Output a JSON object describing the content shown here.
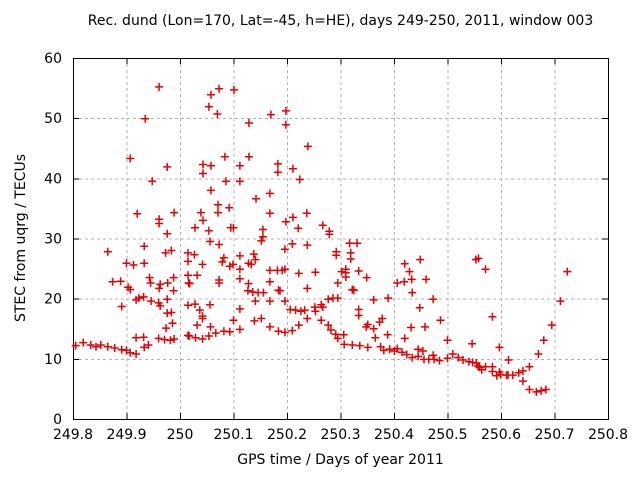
{
  "title": "Rec. dund (Lon=170, Lat=-45, h=HE), days 249-250, 2011, window 003",
  "colors": {
    "marker": "#e60000",
    "grid": "#b0b0b0",
    "border": "#000000",
    "background": "#ffffff",
    "text": "#000000"
  },
  "chart_data": {
    "type": "scatter",
    "title": "Rec. dund (Lon=170, Lat=-45, h=HE), days 249-250, 2011, window 003",
    "xlabel": "GPS time / Days of year 2011",
    "ylabel": "STEC from uqrg / TECUs",
    "xlim": [
      249.8,
      250.8
    ],
    "ylim": [
      0,
      60
    ],
    "xticks": [
      249.8,
      249.9,
      250,
      250.1,
      250.2,
      250.3,
      250.4,
      250.5,
      250.6,
      250.7,
      250.8
    ],
    "xtick_labels": [
      "249.8",
      "249.9",
      "250",
      "250.1",
      "250.2",
      "250.3",
      "250.4",
      "250.5",
      "250.6",
      "250.7",
      "250.8"
    ],
    "yticks": [
      0,
      10,
      20,
      30,
      40,
      50,
      60
    ],
    "ytick_labels": [
      "0",
      "10",
      "20",
      "30",
      "40",
      "50",
      "60"
    ],
    "grid": true,
    "legend": null,
    "marker": "plus",
    "points": [
      [
        249.961,
        55.2
      ],
      [
        249.935,
        49.9
      ],
      [
        249.907,
        43.3
      ],
      [
        249.976,
        41.9
      ],
      [
        250.043,
        42.3
      ],
      [
        250.043,
        40.8
      ],
      [
        249.948,
        39.5
      ],
      [
        249.92,
        34.1
      ],
      [
        249.961,
        33.2
      ],
      [
        249.961,
        32.5
      ],
      [
        249.989,
        34.3
      ],
      [
        250.028,
        31.8
      ],
      [
        250.039,
        34.3
      ],
      [
        250.043,
        33.0
      ],
      [
        249.976,
        30.8
      ],
      [
        250.073,
        54.9
      ],
      [
        250.101,
        54.7
      ],
      [
        250.058,
        53.9
      ],
      [
        250.054,
        51.9
      ],
      [
        250.07,
        50.7
      ],
      [
        250.17,
        50.6
      ],
      [
        250.198,
        51.2
      ],
      [
        250.129,
        49.2
      ],
      [
        250.198,
        48.9
      ],
      [
        250.239,
        45.3
      ],
      [
        250.084,
        43.6
      ],
      [
        250.129,
        43.6
      ],
      [
        250.112,
        42.1
      ],
      [
        250.058,
        42.1
      ],
      [
        250.183,
        42.4
      ],
      [
        250.183,
        41.0
      ],
      [
        250.211,
        41.6
      ],
      [
        250.086,
        39.5
      ],
      [
        250.112,
        39.5
      ],
      [
        250.224,
        39.8
      ],
      [
        250.058,
        38.0
      ],
      [
        250.142,
        36.6
      ],
      [
        250.168,
        37.5
      ],
      [
        250.071,
        35.6
      ],
      [
        250.092,
        35.1
      ],
      [
        250.071,
        34.3
      ],
      [
        250.168,
        34.2
      ],
      [
        250.198,
        32.8
      ],
      [
        250.211,
        33.5
      ],
      [
        250.237,
        34.2
      ],
      [
        250.221,
        31.7
      ],
      [
        250.095,
        31.8
      ],
      [
        250.1,
        31.8
      ],
      [
        250.155,
        31.5
      ],
      [
        250.267,
        32.2
      ],
      [
        250.279,
        31.2
      ],
      [
        250.279,
        30.7
      ],
      [
        250.155,
        30.3
      ],
      [
        250.054,
        31.3
      ],
      [
        249.865,
        27.8
      ],
      [
        249.933,
        28.7
      ],
      [
        249.973,
        27.6
      ],
      [
        249.984,
        28.0
      ],
      [
        250.015,
        27.6
      ],
      [
        250.027,
        27.3
      ],
      [
        249.9,
        25.9
      ],
      [
        249.913,
        25.6
      ],
      [
        249.933,
        25.9
      ],
      [
        250.042,
        25.7
      ],
      [
        250.015,
        26.2
      ],
      [
        249.874,
        22.8
      ],
      [
        249.889,
        22.9
      ],
      [
        249.943,
        23.5
      ],
      [
        249.945,
        22.6
      ],
      [
        249.963,
        22.4
      ],
      [
        249.977,
        22.6
      ],
      [
        249.988,
        23.5
      ],
      [
        250.015,
        23.9
      ],
      [
        250.032,
        23.9
      ],
      [
        250.016,
        22.6
      ],
      [
        250.018,
        22.5
      ],
      [
        249.988,
        21.3
      ],
      [
        249.961,
        21.7
      ],
      [
        249.903,
        21.9
      ],
      [
        249.907,
        21.5
      ],
      [
        249.918,
        19.8
      ],
      [
        249.923,
        20.1
      ],
      [
        249.932,
        20.3
      ],
      [
        249.946,
        19.6
      ],
      [
        249.96,
        19.3
      ],
      [
        249.891,
        18.7
      ],
      [
        249.963,
        18.8
      ],
      [
        249.976,
        19.9
      ],
      [
        250.028,
        19.1
      ],
      [
        250.015,
        18.9
      ],
      [
        249.976,
        17.6
      ],
      [
        249.984,
        17.7
      ],
      [
        250.037,
        18.1
      ],
      [
        250.042,
        17.1
      ],
      [
        250.042,
        16.7
      ],
      [
        250.032,
        15.6
      ],
      [
        249.974,
        15.1
      ],
      [
        249.986,
        15.9
      ],
      [
        249.918,
        13.5
      ],
      [
        249.932,
        13.6
      ],
      [
        249.96,
        13.4
      ],
      [
        249.971,
        13.2
      ],
      [
        249.982,
        13.1
      ],
      [
        249.989,
        13.3
      ],
      [
        250.015,
        13.9
      ],
      [
        250.017,
        13.8
      ],
      [
        250.029,
        13.5
      ],
      [
        250.042,
        13.3
      ],
      [
        249.805,
        12.2
      ],
      [
        249.819,
        12.7
      ],
      [
        249.833,
        12.3
      ],
      [
        249.843,
        12.0
      ],
      [
        249.852,
        12.3
      ],
      [
        249.865,
        12.0
      ],
      [
        249.878,
        11.8
      ],
      [
        249.891,
        11.5
      ],
      [
        249.9,
        11.4
      ],
      [
        249.907,
        11.0
      ],
      [
        249.918,
        10.8
      ],
      [
        249.933,
        11.9
      ],
      [
        249.941,
        12.3
      ],
      [
        250.056,
        29.5
      ],
      [
        250.073,
        29.0
      ],
      [
        250.152,
        29.6
      ],
      [
        250.196,
        28.2
      ],
      [
        250.21,
        29.1
      ],
      [
        250.238,
        28.9
      ],
      [
        250.292,
        27.8
      ],
      [
        250.292,
        27.2
      ],
      [
        250.082,
        26.8
      ],
      [
        250.079,
        26.1
      ],
      [
        250.112,
        27.1
      ],
      [
        250.138,
        27.4
      ],
      [
        250.141,
        26.5
      ],
      [
        250.128,
        25.9
      ],
      [
        250.133,
        25.7
      ],
      [
        250.099,
        25.7
      ],
      [
        250.093,
        25.4
      ],
      [
        250.112,
        24.9
      ],
      [
        250.168,
        24.7
      ],
      [
        250.182,
        24.7
      ],
      [
        250.191,
        24.7
      ],
      [
        250.196,
        24.9
      ],
      [
        250.222,
        24.2
      ],
      [
        250.253,
        24.4
      ],
      [
        250.302,
        24.5
      ],
      [
        250.073,
        23.1
      ],
      [
        250.073,
        22.6
      ],
      [
        250.112,
        23.3
      ],
      [
        250.128,
        22.5
      ],
      [
        250.168,
        22.8
      ],
      [
        250.238,
        21.7
      ],
      [
        250.295,
        22.6
      ],
      [
        250.127,
        21.3
      ],
      [
        250.136,
        21.1
      ],
      [
        250.146,
        21.0
      ],
      [
        250.156,
        21.0
      ],
      [
        250.184,
        21.4
      ],
      [
        250.187,
        21.3
      ],
      [
        250.168,
        19.6
      ],
      [
        250.141,
        19.6
      ],
      [
        250.196,
        19.6
      ],
      [
        250.056,
        19.0
      ],
      [
        250.112,
        18.3
      ],
      [
        250.206,
        18.2
      ],
      [
        250.216,
        18.1
      ],
      [
        250.226,
        17.9
      ],
      [
        250.233,
        18.1
      ],
      [
        250.252,
        18.6
      ],
      [
        250.253,
        17.9
      ],
      [
        250.264,
        19.0
      ],
      [
        250.267,
        18.6
      ],
      [
        250.277,
        19.9
      ],
      [
        250.286,
        20.1
      ],
      [
        250.295,
        20.1
      ],
      [
        250.238,
        16.7
      ],
      [
        250.264,
        16.4
      ],
      [
        250.222,
        15.6
      ],
      [
        250.1,
        16.4
      ],
      [
        250.139,
        16.3
      ],
      [
        250.152,
        16.7
      ],
      [
        250.168,
        15.3
      ],
      [
        250.277,
        15.6
      ],
      [
        250.282,
        14.8
      ],
      [
        250.057,
        15.3
      ],
      [
        250.054,
        13.8
      ],
      [
        250.067,
        14.3
      ],
      [
        250.082,
        14.6
      ],
      [
        250.093,
        14.5
      ],
      [
        250.112,
        14.9
      ],
      [
        250.184,
        14.6
      ],
      [
        250.196,
        14.4
      ],
      [
        250.21,
        14.7
      ],
      [
        250.291,
        14.1
      ],
      [
        250.295,
        13.4
      ],
      [
        250.317,
        29.2
      ],
      [
        250.331,
        29.2
      ],
      [
        250.319,
        27.6
      ],
      [
        250.319,
        26.6
      ],
      [
        250.31,
        24.9
      ],
      [
        250.31,
        24.3
      ],
      [
        250.31,
        23.6
      ],
      [
        250.334,
        24.6
      ],
      [
        250.349,
        23.5
      ],
      [
        250.322,
        21.5
      ],
      [
        250.325,
        21.4
      ],
      [
        250.42,
        25.8
      ],
      [
        250.449,
        26.5
      ],
      [
        250.429,
        24.5
      ],
      [
        250.433,
        23.2
      ],
      [
        250.406,
        22.6
      ],
      [
        250.419,
        22.8
      ],
      [
        250.434,
        21.0
      ],
      [
        250.46,
        23.2
      ],
      [
        250.553,
        26.5
      ],
      [
        250.362,
        19.8
      ],
      [
        250.389,
        20.1
      ],
      [
        250.473,
        19.9
      ],
      [
        250.448,
        18.5
      ],
      [
        250.334,
        18.2
      ],
      [
        250.334,
        17.2
      ],
      [
        250.378,
        16.7
      ],
      [
        250.351,
        15.7
      ],
      [
        250.348,
        15.3
      ],
      [
        250.362,
        15.0
      ],
      [
        250.373,
        16.1
      ],
      [
        250.432,
        15.2
      ],
      [
        250.458,
        15.3
      ],
      [
        250.487,
        16.4
      ],
      [
        250.306,
        14.0
      ],
      [
        250.365,
        13.5
      ],
      [
        250.388,
        14.0
      ],
      [
        250.42,
        13.4
      ],
      [
        250.5,
        13.1
      ],
      [
        250.546,
        12.5
      ],
      [
        250.307,
        12.4
      ],
      [
        250.322,
        12.3
      ],
      [
        250.336,
        12.2
      ],
      [
        250.351,
        11.9
      ],
      [
        250.375,
        12.0
      ],
      [
        250.381,
        11.4
      ],
      [
        250.392,
        11.6
      ],
      [
        250.401,
        11.3
      ],
      [
        250.406,
        11.7
      ],
      [
        250.415,
        11.1
      ],
      [
        250.424,
        10.7
      ],
      [
        250.434,
        10.2
      ],
      [
        250.445,
        11.6
      ],
      [
        250.454,
        11.3
      ],
      [
        250.445,
        10.4
      ],
      [
        250.456,
        9.9
      ],
      [
        250.465,
        9.9
      ],
      [
        250.473,
        10.6
      ],
      [
        250.475,
        9.9
      ],
      [
        250.485,
        9.7
      ],
      [
        250.5,
        10.1
      ],
      [
        250.51,
        10.8
      ],
      [
        250.52,
        10.2
      ],
      [
        250.529,
        9.8
      ],
      [
        250.54,
        9.5
      ],
      [
        250.547,
        9.4
      ],
      [
        250.554,
        9.3
      ],
      [
        250.558,
        26.7
      ],
      [
        250.571,
        24.9
      ],
      [
        250.724,
        24.5
      ],
      [
        250.711,
        19.6
      ],
      [
        250.584,
        17.0
      ],
      [
        250.695,
        15.6
      ],
      [
        250.68,
        13.1
      ],
      [
        250.597,
        11.9
      ],
      [
        250.67,
        10.8
      ],
      [
        250.614,
        9.8
      ],
      [
        250.653,
        8.7
      ],
      [
        250.557,
        8.8
      ],
      [
        250.56,
        8.6
      ],
      [
        250.564,
        8.2
      ],
      [
        250.571,
        8.7
      ],
      [
        250.584,
        8.7
      ],
      [
        250.584,
        7.9
      ],
      [
        250.592,
        7.2
      ],
      [
        250.597,
        7.8
      ],
      [
        250.599,
        7.4
      ],
      [
        250.61,
        7.3
      ],
      [
        250.613,
        7.3
      ],
      [
        250.622,
        7.3
      ],
      [
        250.633,
        7.7
      ],
      [
        250.641,
        8.0
      ],
      [
        250.641,
        6.3
      ],
      [
        250.653,
        4.9
      ],
      [
        250.666,
        4.5
      ],
      [
        250.675,
        4.7
      ],
      [
        250.684,
        4.9
      ]
    ]
  }
}
